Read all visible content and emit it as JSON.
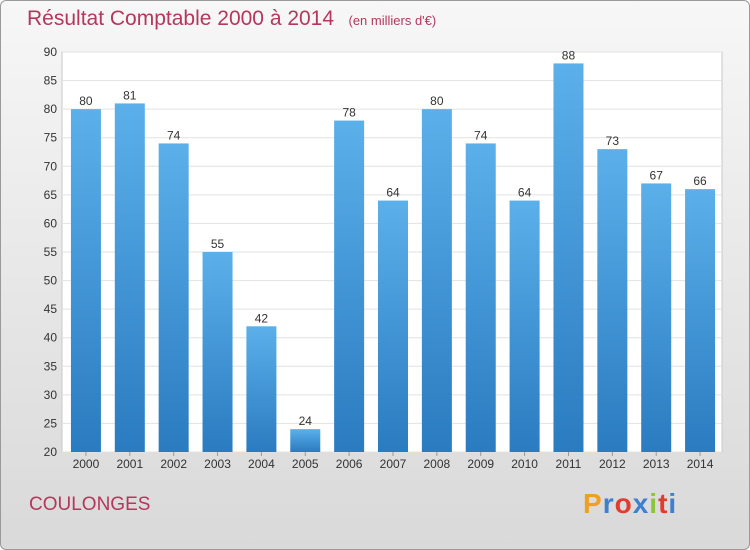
{
  "chart_data": {
    "type": "bar",
    "title": "Résultat Comptable 2000 à 2014",
    "subtitle": "(en milliers d'€)",
    "categories": [
      "2000",
      "2001",
      "2002",
      "2003",
      "2004",
      "2005",
      "2006",
      "2007",
      "2008",
      "2009",
      "2010",
      "2011",
      "2012",
      "2013",
      "2014"
    ],
    "values": [
      80,
      81,
      74,
      55,
      42,
      24,
      78,
      64,
      80,
      74,
      64,
      88,
      73,
      67,
      66
    ],
    "ylim": [
      20,
      90
    ],
    "yticks": [
      20,
      25,
      30,
      35,
      40,
      45,
      50,
      55,
      60,
      65,
      70,
      75,
      80,
      85,
      90
    ],
    "grid": true,
    "bar_color": "#3d93d6"
  },
  "commune": "COULONGES",
  "logo": {
    "letters": [
      "P",
      "r",
      "o",
      "x",
      "i",
      "t",
      "i"
    ],
    "colors": [
      "#f0a020",
      "#3d7fd0",
      "#e23b2f",
      "#3d7fd0",
      "#8cc43c",
      "#e23b2f",
      "#3d7fd0"
    ]
  }
}
